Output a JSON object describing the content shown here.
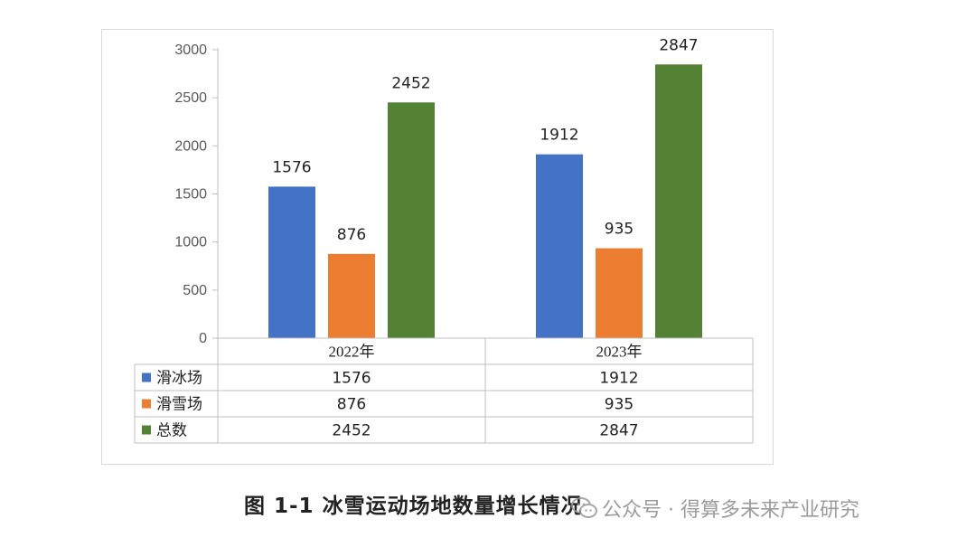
{
  "caption": "图 1-1  冰雪运动场地数量增长情况",
  "watermark": {
    "text": "公众号 · 得算多未来产业研究",
    "icon": "wechat-icon"
  },
  "chart_data": {
    "type": "bar",
    "categories": [
      "2022年",
      "2023年"
    ],
    "series": [
      {
        "name": "滑冰场",
        "values": [
          1576,
          1912
        ],
        "color": "#4472c4"
      },
      {
        "name": "滑雪场",
        "values": [
          876,
          935
        ],
        "color": "#ed7d31"
      },
      {
        "name": "总数",
        "values": [
          2452,
          2847
        ],
        "color": "#548235"
      }
    ],
    "yticks": [
      0,
      500,
      1000,
      1500,
      2000,
      2500,
      3000
    ],
    "ylim": [
      0,
      3000
    ],
    "data_labels": true,
    "grid": false,
    "legend": "data-table-below"
  }
}
